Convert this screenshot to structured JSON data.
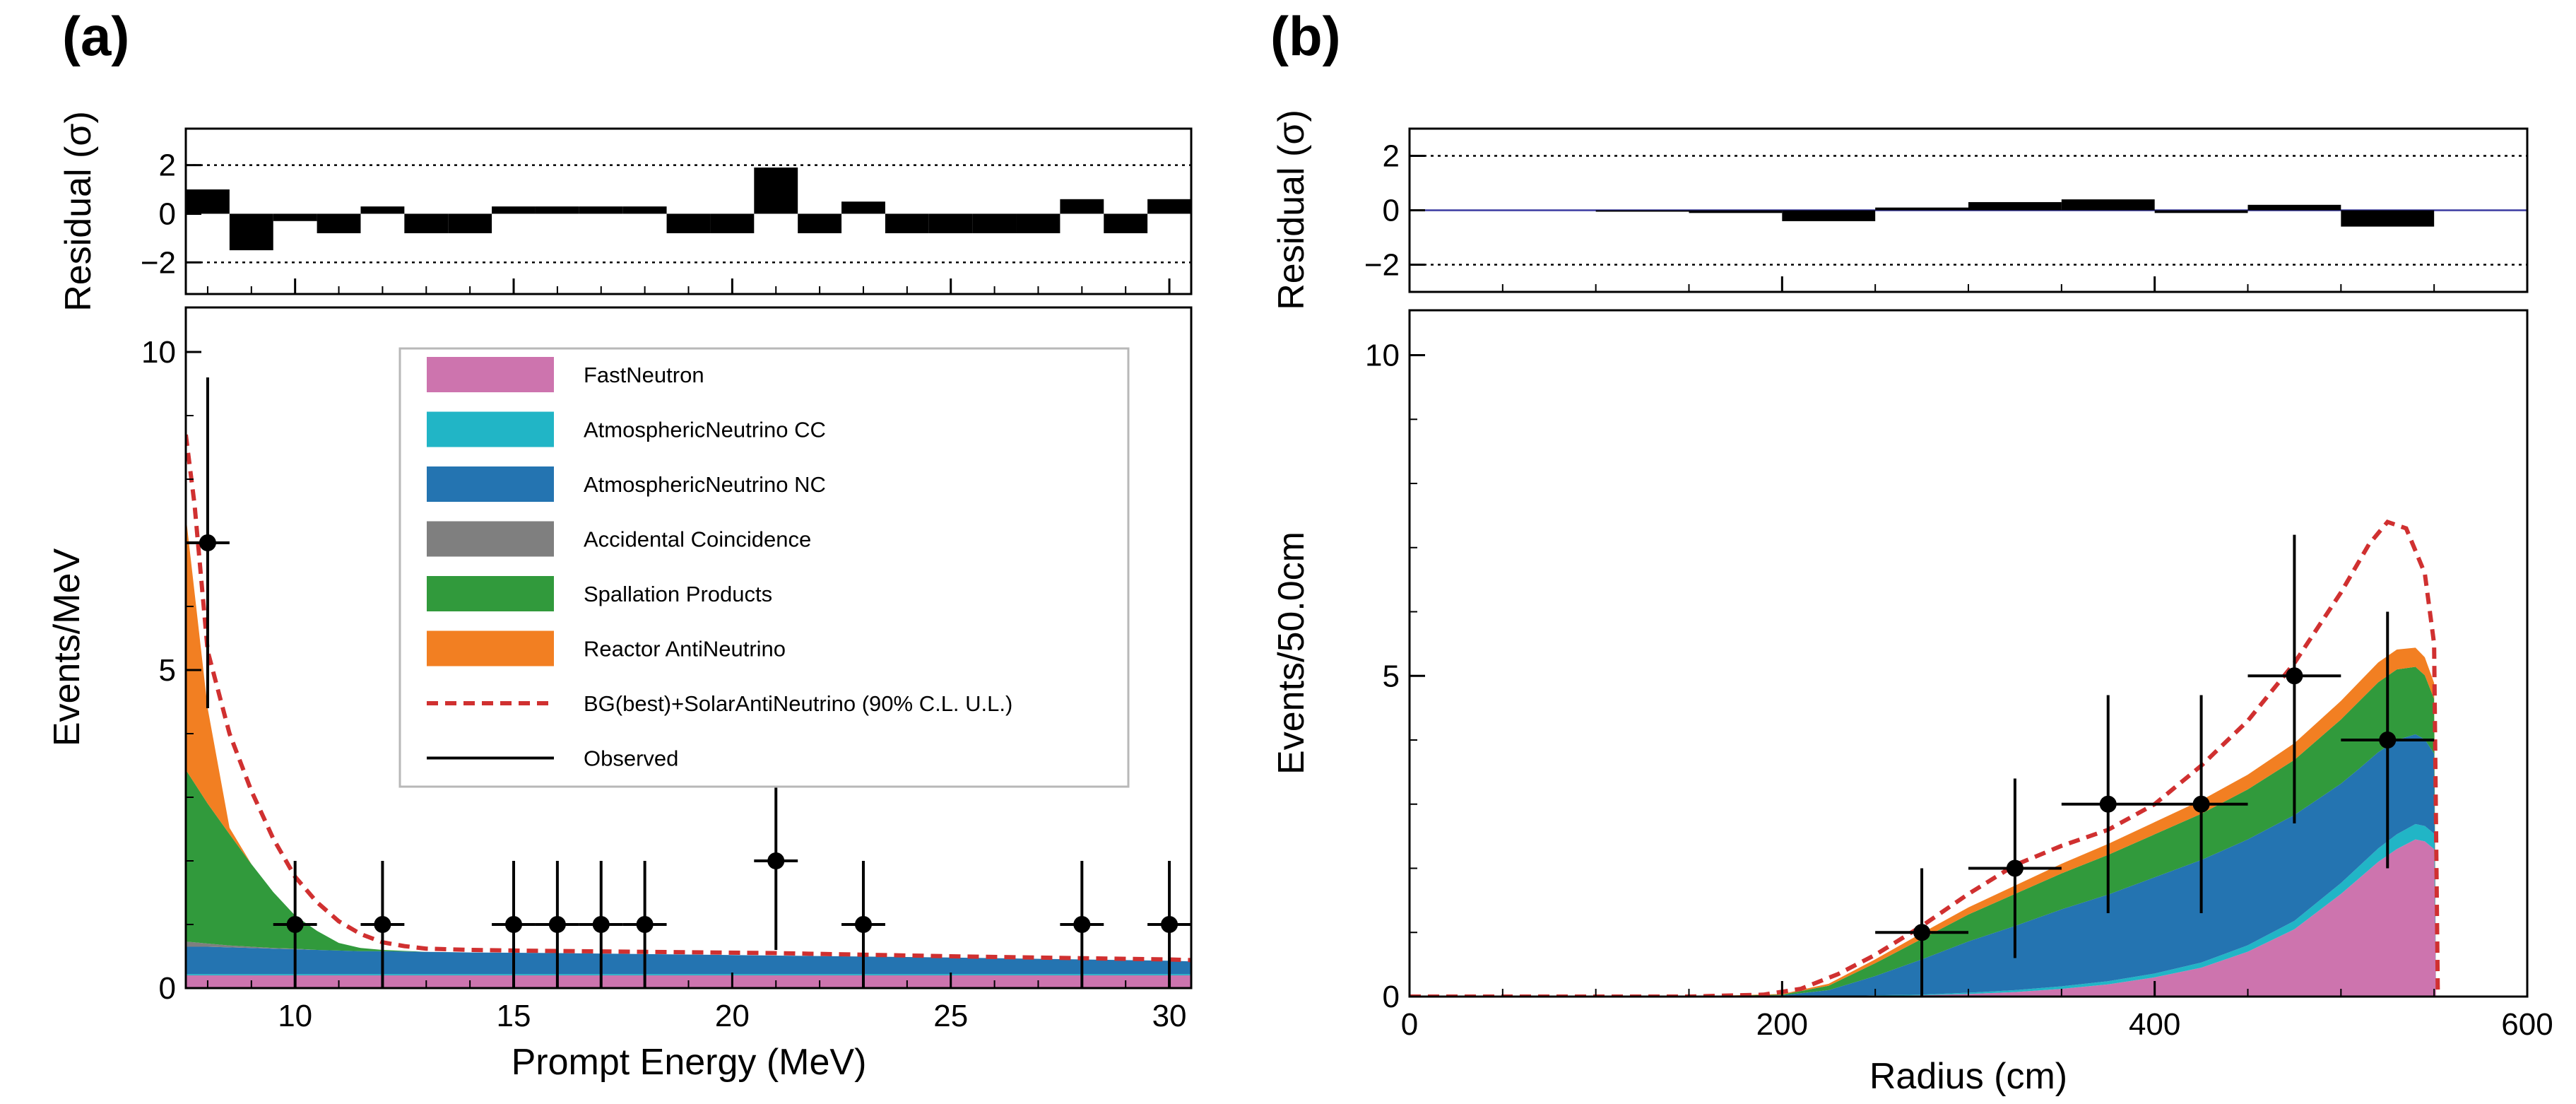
{
  "figure": {
    "panel_a_label": "(a)",
    "panel_b_label": "(b)"
  },
  "colors": {
    "FastNeutron": "#cd74ae",
    "AtmosphericNeutrinoCC": "#21b5c6",
    "AtmosphericNeutrinoNC": "#2474b1",
    "AccidentalCoincidence": "#7f7f7f",
    "SpallationProducts": "#319a3c",
    "ReactorAntiNeutrino": "#f27f22",
    "BGplusSignal": "#d03030",
    "Observed": "#000000"
  },
  "chart_data": [
    {
      "id": "a_residual",
      "type": "bar",
      "ylabel": "Residual (σ)",
      "xlim": [
        7.5,
        30.5
      ],
      "ylim": [
        -3.3,
        3.5
      ],
      "yticks": [
        -2,
        0,
        2
      ],
      "ytick_labels": [
        "−2",
        "0",
        "2"
      ],
      "reference_lines": [
        2,
        -2
      ],
      "bin_width": 1,
      "x": [
        8,
        9,
        10,
        11,
        12,
        13,
        14,
        15,
        16,
        17,
        18,
        19,
        20,
        21,
        22,
        23,
        24,
        25,
        26,
        27,
        28,
        29,
        30
      ],
      "values": [
        1.0,
        -1.5,
        -0.3,
        -0.8,
        0.3,
        -0.8,
        -0.8,
        0.3,
        0.3,
        0.3,
        0.3,
        -0.8,
        -0.8,
        1.9,
        -0.8,
        0.5,
        -0.8,
        -0.8,
        -0.8,
        -0.8,
        0.6,
        -0.8,
        0.6
      ]
    },
    {
      "id": "a_main",
      "type": "area",
      "xlabel": "Prompt Energy (MeV)",
      "ylabel": "Events/MeV",
      "xlim": [
        7.5,
        30.5
      ],
      "ylim": [
        0,
        10.7
      ],
      "xticks": [
        10,
        15,
        20,
        25,
        30
      ],
      "yticks": [
        0,
        5,
        10
      ],
      "x": [
        7.5,
        7.7,
        8.0,
        8.5,
        9.0,
        9.5,
        10.0,
        10.5,
        11.0,
        11.5,
        12.0,
        13.0,
        14.0,
        16.0,
        20.0,
        25.0,
        30.0,
        30.5
      ],
      "series": [
        {
          "name": "FastNeutron",
          "values": [
            0.2,
            0.2,
            0.2,
            0.2,
            0.2,
            0.2,
            0.2,
            0.2,
            0.2,
            0.2,
            0.2,
            0.2,
            0.2,
            0.2,
            0.2,
            0.2,
            0.2,
            0.2
          ]
        },
        {
          "name": "AtmosphericNeutrino CC",
          "values": [
            0.02,
            0.02,
            0.02,
            0.02,
            0.02,
            0.02,
            0.02,
            0.02,
            0.02,
            0.02,
            0.02,
            0.02,
            0.02,
            0.02,
            0.02,
            0.02,
            0.02,
            0.02
          ]
        },
        {
          "name": "AtmosphericNeutrino NC",
          "values": [
            0.43,
            0.43,
            0.43,
            0.42,
            0.41,
            0.4,
            0.39,
            0.38,
            0.37,
            0.36,
            0.36,
            0.35,
            0.34,
            0.33,
            0.3,
            0.26,
            0.21,
            0.2
          ]
        },
        {
          "name": "Accidental Coincidence",
          "values": [
            0.08,
            0.07,
            0.05,
            0.03,
            0.02,
            0.01,
            0.01,
            0.0,
            0.0,
            0.0,
            0.0,
            0.0,
            0.0,
            0.0,
            0.0,
            0.0,
            0.0,
            0.0
          ]
        },
        {
          "name": "Spallation Products",
          "values": [
            2.7,
            2.5,
            2.2,
            1.75,
            1.3,
            0.88,
            0.52,
            0.3,
            0.12,
            0.05,
            0.02,
            0.0,
            0.0,
            0.0,
            0.0,
            0.0,
            0.0,
            0.0
          ]
        },
        {
          "name": "Reactor AntiNeutrino",
          "values": [
            4.0,
            3.0,
            1.5,
            0.1,
            0.0,
            0.0,
            0.0,
            0.0,
            0.0,
            0.0,
            0.0,
            0.0,
            0.0,
            0.0,
            0.0,
            0.0,
            0.0,
            0.0
          ]
        }
      ],
      "dashed_line": {
        "name": "BG(best)+SolarAntiNeutrino (90% C.L. U.L.)",
        "x": [
          7.5,
          7.7,
          8.0,
          8.5,
          9.0,
          9.5,
          10.0,
          10.5,
          11.0,
          11.5,
          12.0,
          12.5,
          13.0,
          14.0,
          15.0,
          18.0,
          21.0,
          25.0,
          30.0,
          30.5
        ],
        "y": [
          8.7,
          7.6,
          5.3,
          4.0,
          3.1,
          2.35,
          1.75,
          1.35,
          1.05,
          0.85,
          0.72,
          0.66,
          0.62,
          0.6,
          0.59,
          0.57,
          0.55,
          0.5,
          0.45,
          0.44
        ]
      },
      "observed": {
        "name": "Observed",
        "x": [
          8,
          10,
          12,
          15,
          16,
          17,
          18,
          21,
          23,
          28,
          30
        ],
        "y": [
          7,
          1,
          1,
          1,
          1,
          1,
          1,
          2,
          1,
          1,
          1
        ],
        "yerr_low": [
          2.6,
          1.0,
          1.0,
          1.0,
          1.0,
          1.0,
          1.0,
          1.4,
          1.0,
          1.0,
          1.0
        ],
        "yerr_high": [
          2.6,
          1.0,
          1.0,
          1.0,
          1.0,
          1.0,
          1.0,
          1.4,
          1.0,
          1.0,
          1.0
        ],
        "xerr": 0.5
      },
      "legend_location": "upper-center",
      "legend": [
        {
          "label": "FastNeutron",
          "kind": "box",
          "color": "#cd74ae"
        },
        {
          "label": "AtmosphericNeutrino CC",
          "kind": "box",
          "color": "#21b5c6"
        },
        {
          "label": "AtmosphericNeutrino NC",
          "kind": "box",
          "color": "#2474b1"
        },
        {
          "label": "Accidental Coincidence",
          "kind": "box",
          "color": "#7f7f7f"
        },
        {
          "label": "Spallation Products",
          "kind": "box",
          "color": "#319a3c"
        },
        {
          "label": "Reactor AntiNeutrino",
          "kind": "box",
          "color": "#f27f22"
        },
        {
          "label": "BG(best)+SolarAntiNeutrino (90% C.L. U.L.)",
          "kind": "dash",
          "color": "#d03030"
        },
        {
          "label": "Observed",
          "kind": "line",
          "color": "#000000"
        }
      ]
    },
    {
      "id": "b_residual",
      "type": "bar",
      "ylabel": "Residual (σ)",
      "xlim": [
        0,
        600
      ],
      "ylim": [
        -3.0,
        3.0
      ],
      "yticks": [
        -2,
        0,
        2
      ],
      "ytick_labels": [
        "−2",
        "0",
        "2"
      ],
      "reference_lines": [
        2,
        -2
      ],
      "zero_line": true,
      "bin_width": 50,
      "x": [
        125,
        175,
        225,
        275,
        325,
        375,
        425,
        475,
        525
      ],
      "values": [
        0.0,
        -0.1,
        -0.4,
        0.1,
        0.3,
        0.4,
        -0.1,
        0.2,
        -0.6
      ]
    },
    {
      "id": "b_main",
      "type": "area",
      "xlabel": "Radius (cm)",
      "ylabel": "Events/50.0cm",
      "xlim": [
        0,
        600
      ],
      "ylim": [
        0,
        10.7
      ],
      "xticks": [
        0,
        200,
        400,
        600
      ],
      "yticks": [
        0,
        5,
        10
      ],
      "x": [
        0,
        150,
        200,
        225,
        250,
        275,
        300,
        325,
        350,
        375,
        400,
        425,
        450,
        475,
        500,
        510,
        520,
        530,
        540,
        545,
        550,
        551
      ],
      "series": [
        {
          "name": "FastNeutron",
          "values": [
            0,
            0,
            0.0,
            0.0,
            0.01,
            0.02,
            0.04,
            0.07,
            0.12,
            0.19,
            0.3,
            0.45,
            0.7,
            1.05,
            1.6,
            1.85,
            2.1,
            2.3,
            2.45,
            2.42,
            2.3,
            0
          ]
        },
        {
          "name": "AtmosphericNeutrino CC",
          "values": [
            0,
            0,
            0.0,
            0.0,
            0.01,
            0.01,
            0.02,
            0.03,
            0.04,
            0.05,
            0.06,
            0.08,
            0.1,
            0.13,
            0.17,
            0.19,
            0.21,
            0.23,
            0.24,
            0.24,
            0.24,
            0
          ]
        },
        {
          "name": "AtmosphericNeutrino NC",
          "values": [
            0,
            0,
            0.02,
            0.1,
            0.3,
            0.55,
            0.8,
            1.0,
            1.2,
            1.35,
            1.5,
            1.6,
            1.65,
            1.65,
            1.55,
            1.52,
            1.5,
            1.47,
            1.4,
            1.35,
            1.25,
            0
          ]
        },
        {
          "name": "Accidental Coincidence",
          "values": [
            0,
            0,
            0.0,
            0.0,
            0.0,
            0.0,
            0.0,
            0.0,
            0.0,
            0.0,
            0.0,
            0.0,
            0.0,
            0.0,
            0.0,
            0.0,
            0.0,
            0.0,
            0.0,
            0.0,
            0.0,
            0
          ]
        },
        {
          "name": "Spallation Products",
          "values": [
            0,
            0,
            0.01,
            0.07,
            0.2,
            0.32,
            0.42,
            0.5,
            0.56,
            0.62,
            0.67,
            0.72,
            0.78,
            0.86,
            1.0,
            1.05,
            1.09,
            1.1,
            1.05,
            1.0,
            0.85,
            0
          ]
        },
        {
          "name": "Reactor AntiNeutrino",
          "values": [
            0,
            0,
            0.01,
            0.03,
            0.06,
            0.09,
            0.11,
            0.13,
            0.15,
            0.17,
            0.19,
            0.21,
            0.23,
            0.26,
            0.29,
            0.3,
            0.31,
            0.31,
            0.3,
            0.28,
            0.25,
            0
          ]
        }
      ],
      "dashed_line": {
        "name": "BG(best)+SolarAntiNeutrino (90% C.L. U.L.)",
        "x": [
          0,
          150,
          190,
          210,
          230,
          250,
          275,
          300,
          325,
          350,
          375,
          400,
          425,
          450,
          475,
          500,
          515,
          525,
          535,
          545,
          550,
          552
        ],
        "y": [
          0,
          0,
          0.03,
          0.12,
          0.35,
          0.65,
          1.1,
          1.6,
          2.05,
          2.35,
          2.6,
          3.0,
          3.6,
          4.3,
          5.2,
          6.3,
          7.05,
          7.4,
          7.3,
          6.6,
          5.5,
          0
        ]
      },
      "observed": {
        "name": "Observed",
        "x": [
          275,
          325,
          375,
          425,
          475,
          525
        ],
        "y": [
          1,
          2,
          3,
          3,
          5,
          4
        ],
        "yerr_low": [
          1.0,
          1.4,
          1.7,
          1.7,
          2.3,
          2.0
        ],
        "yerr_high": [
          1.0,
          1.4,
          1.7,
          1.7,
          2.2,
          2.0
        ],
        "xerr": 25
      }
    }
  ]
}
